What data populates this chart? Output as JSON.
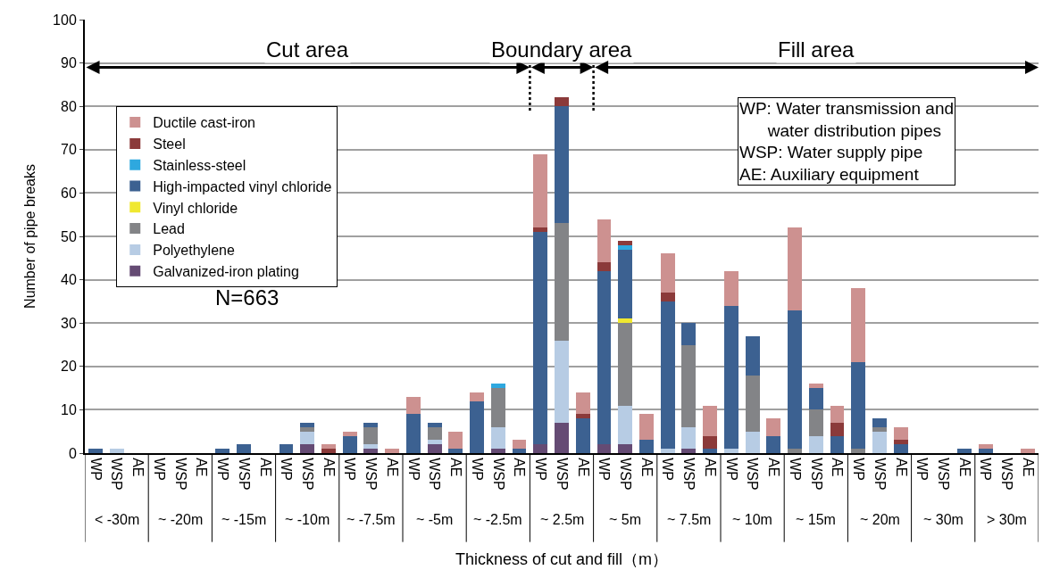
{
  "chart_data": {
    "type": "bar",
    "stacked": true,
    "xlabel": "Thickness of cut and fill（m）",
    "ylabel": "Number of pipe breaks",
    "categories": [
      "WP",
      "WSP",
      "AE",
      "WP",
      "WSP",
      "AE",
      "WP",
      "WSP",
      "AE",
      "WP",
      "WSP",
      "AE",
      "WP",
      "WSP",
      "AE",
      "WP",
      "WSP",
      "AE",
      "WP",
      "WSP",
      "AE",
      "WP",
      "WSP",
      "AE",
      "WP",
      "WSP",
      "AE",
      "WP",
      "WSP",
      "AE",
      "WP",
      "WSP",
      "AE",
      "WP",
      "WSP",
      "AE",
      "WP",
      "WSP",
      "AE",
      "WP",
      "WSP",
      "AE",
      "WP",
      "WSP",
      "AE"
    ],
    "series": [
      {
        "name": "Galvanized-iron plating",
        "color": "#654b74",
        "values": [
          0,
          0,
          0,
          0,
          0,
          0,
          0,
          0,
          0,
          0,
          2,
          0,
          0,
          1,
          0,
          0,
          2,
          0,
          0,
          1,
          0,
          2,
          7,
          0,
          2,
          2,
          0,
          0,
          1,
          0,
          0,
          0,
          0,
          0,
          0,
          0,
          0,
          0,
          0,
          0,
          0,
          0,
          0,
          0,
          0
        ]
      },
      {
        "name": "Polyethylene",
        "color": "#b7cce4",
        "values": [
          0,
          1,
          0,
          0,
          0,
          0,
          0,
          0,
          0,
          0,
          3,
          0,
          0,
          1,
          0,
          0,
          1,
          0,
          0,
          5,
          0,
          0,
          19,
          0,
          0,
          9,
          0,
          1,
          5,
          0,
          1,
          5,
          0,
          0,
          4,
          0,
          0,
          5,
          0,
          0,
          0,
          0,
          0,
          0,
          0
        ]
      },
      {
        "name": "Lead",
        "color": "#838487",
        "values": [
          0,
          0,
          0,
          0,
          0,
          0,
          0,
          0,
          0,
          0,
          1,
          0,
          0,
          4,
          0,
          0,
          3,
          0,
          0,
          9,
          0,
          0,
          27,
          0,
          0,
          19,
          0,
          0,
          19,
          0,
          0,
          13,
          0,
          1,
          6,
          0,
          1,
          1,
          0,
          0,
          0,
          0,
          0,
          0,
          0
        ]
      },
      {
        "name": "Vinyl chloride",
        "color": "#f0e830",
        "values": [
          0,
          0,
          0,
          0,
          0,
          0,
          0,
          0,
          0,
          0,
          0,
          0,
          0,
          0,
          0,
          0,
          0,
          0,
          0,
          0,
          0,
          0,
          0,
          0,
          0,
          1,
          0,
          0,
          0,
          0,
          0,
          0,
          0,
          0,
          0,
          0,
          0,
          0,
          0,
          0,
          0,
          0,
          0,
          0,
          0
        ]
      },
      {
        "name": "High-impacted vinyl chloride",
        "color": "#3c6191",
        "values": [
          1,
          0,
          0,
          0,
          0,
          0,
          1,
          2,
          0,
          2,
          1,
          0,
          4,
          1,
          0,
          9,
          1,
          1,
          12,
          0,
          1,
          49,
          27,
          8,
          40,
          16,
          3,
          34,
          5,
          1,
          33,
          9,
          4,
          32,
          5,
          4,
          20,
          2,
          2,
          0,
          0,
          1,
          1,
          0,
          0
        ]
      },
      {
        "name": "Stainless-steel",
        "color": "#2ea8df",
        "values": [
          0,
          0,
          0,
          0,
          0,
          0,
          0,
          0,
          0,
          0,
          0,
          0,
          0,
          0,
          0,
          0,
          0,
          0,
          0,
          1,
          0,
          0,
          0,
          0,
          0,
          1,
          0,
          0,
          0,
          0,
          0,
          0,
          0,
          0,
          0,
          0,
          0,
          0,
          0,
          0,
          0,
          0,
          0,
          0,
          0
        ]
      },
      {
        "name": "Steel",
        "color": "#8b3a3a",
        "values": [
          0,
          0,
          0,
          0,
          0,
          0,
          0,
          0,
          0,
          0,
          0,
          1,
          0,
          0,
          0,
          0,
          0,
          0,
          0,
          0,
          0,
          1,
          2,
          1,
          2,
          1,
          0,
          2,
          0,
          3,
          0,
          0,
          0,
          0,
          0,
          3,
          0,
          0,
          1,
          0,
          0,
          0,
          0,
          0,
          0
        ]
      },
      {
        "name": "Ductile cast-iron",
        "color": "#cd9190",
        "values": [
          0,
          0,
          0,
          0,
          0,
          0,
          0,
          0,
          0,
          0,
          0,
          1,
          1,
          0,
          1,
          4,
          0,
          4,
          2,
          0,
          2,
          17,
          0,
          5,
          10,
          0,
          6,
          9,
          0,
          7,
          8,
          0,
          4,
          19,
          1,
          4,
          17,
          0,
          3,
          0,
          0,
          0,
          1,
          0,
          1
        ]
      }
    ],
    "ylim": [
      0,
      100
    ],
    "yticks": [
      0,
      10,
      20,
      30,
      40,
      50,
      60,
      70,
      80,
      90,
      100
    ],
    "grid": "y",
    "legend": "top left",
    "annotations": [
      "Cut area",
      "Boundary area",
      "Fill area",
      "WP: Water transmission and\n      water distribution pipes\nWSP: Water supply pipe\nAE: Auxiliary equipment",
      "N=663",
      "< -30m",
      "~ -20m",
      "~ -15m",
      "~ -10m",
      "~ -7.5m",
      "~ -5m",
      "~ -2.5m",
      "~ 2.5m",
      "~ 5m",
      "~ 7.5m",
      "~ 10m",
      "~ 15m",
      "~ 20m",
      "~ 30m",
      "> 30m"
    ]
  }
}
